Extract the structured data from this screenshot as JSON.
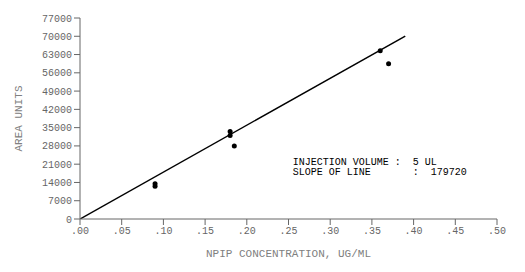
{
  "chart_data": {
    "type": "scatter",
    "title": "",
    "xlabel": "NPIP CONCENTRATION, UG/ML",
    "ylabel": "AREA UNITS",
    "xlim": [
      0.0,
      0.5
    ],
    "ylim": [
      0,
      77000
    ],
    "xticks": [
      {
        "value": 0.0,
        "label": ".00"
      },
      {
        "value": 0.05,
        "label": ".05"
      },
      {
        "value": 0.1,
        "label": ".10"
      },
      {
        "value": 0.15,
        "label": ".15"
      },
      {
        "value": 0.2,
        "label": ".20"
      },
      {
        "value": 0.25,
        "label": ".25"
      },
      {
        "value": 0.3,
        "label": ".30"
      },
      {
        "value": 0.35,
        "label": ".35"
      },
      {
        "value": 0.4,
        "label": ".40"
      },
      {
        "value": 0.45,
        "label": ".45"
      },
      {
        "value": 0.5,
        "label": ".50"
      }
    ],
    "yticks": [
      0,
      7000,
      14000,
      21000,
      28000,
      35000,
      42000,
      49000,
      56000,
      63000,
      70000,
      77000
    ],
    "grid": false,
    "series": [
      {
        "type": "line",
        "color": "#000000",
        "x": [
          0.0,
          0.39
        ],
        "values": [
          0,
          70090.8
        ]
      },
      {
        "type": "scatter",
        "color": "#000000",
        "x": [
          0.09,
          0.09,
          0.18,
          0.18,
          0.185,
          0.36,
          0.37
        ],
        "values": [
          13500,
          12500,
          33500,
          32000,
          28000,
          64500,
          59500
        ]
      }
    ],
    "annotations": [
      {
        "text": "INJECTION VOLUME :  5 UL",
        "x": 0.255,
        "y": 23000
      },
      {
        "text": "SLOPE OF LINE       :  179720",
        "x": 0.255,
        "y": 19500
      }
    ]
  }
}
